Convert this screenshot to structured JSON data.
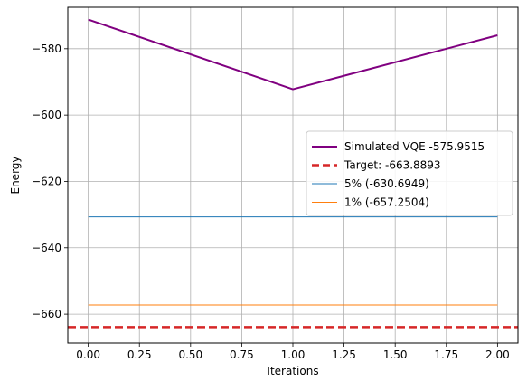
{
  "chart_data": {
    "type": "line",
    "xlabel": "Iterations",
    "ylabel": "Energy",
    "xlim": [
      -0.1,
      2.1
    ],
    "ylim": [
      -668.7,
      -567.5
    ],
    "xticks": [
      0.0,
      0.25,
      0.5,
      0.75,
      1.0,
      1.25,
      1.5,
      1.75,
      2.0
    ],
    "xtick_labels": [
      "0.00",
      "0.25",
      "0.50",
      "0.75",
      "1.00",
      "1.25",
      "1.50",
      "1.75",
      "2.00"
    ],
    "yticks": [
      -580,
      -600,
      -620,
      -640,
      -660
    ],
    "ytick_labels": [
      "−580",
      "−600",
      "−620",
      "−640",
      "−660"
    ],
    "grid": true,
    "legend_position": "center-right",
    "series": [
      {
        "name": "Simulated VQE -575.9515",
        "x": [
          0,
          1,
          2
        ],
        "y": [
          -571.2,
          -592.2,
          -575.9515
        ],
        "color": "#800080",
        "style": "solid",
        "width": 2
      },
      {
        "name": "Target: -663.8893",
        "y_const": -663.8893,
        "color": "#d62728",
        "style": "dashed",
        "width": 2.5,
        "span": "full"
      },
      {
        "name": "5% (-630.6949)",
        "x": [
          0,
          2
        ],
        "y": [
          -630.6949,
          -630.6949
        ],
        "color": "#1f77b4",
        "style": "solid",
        "width": 1
      },
      {
        "name": "1% (-657.2504)",
        "x": [
          0,
          2
        ],
        "y": [
          -657.2504,
          -657.2504
        ],
        "color": "#ff7f0e",
        "style": "solid",
        "width": 1
      }
    ]
  }
}
